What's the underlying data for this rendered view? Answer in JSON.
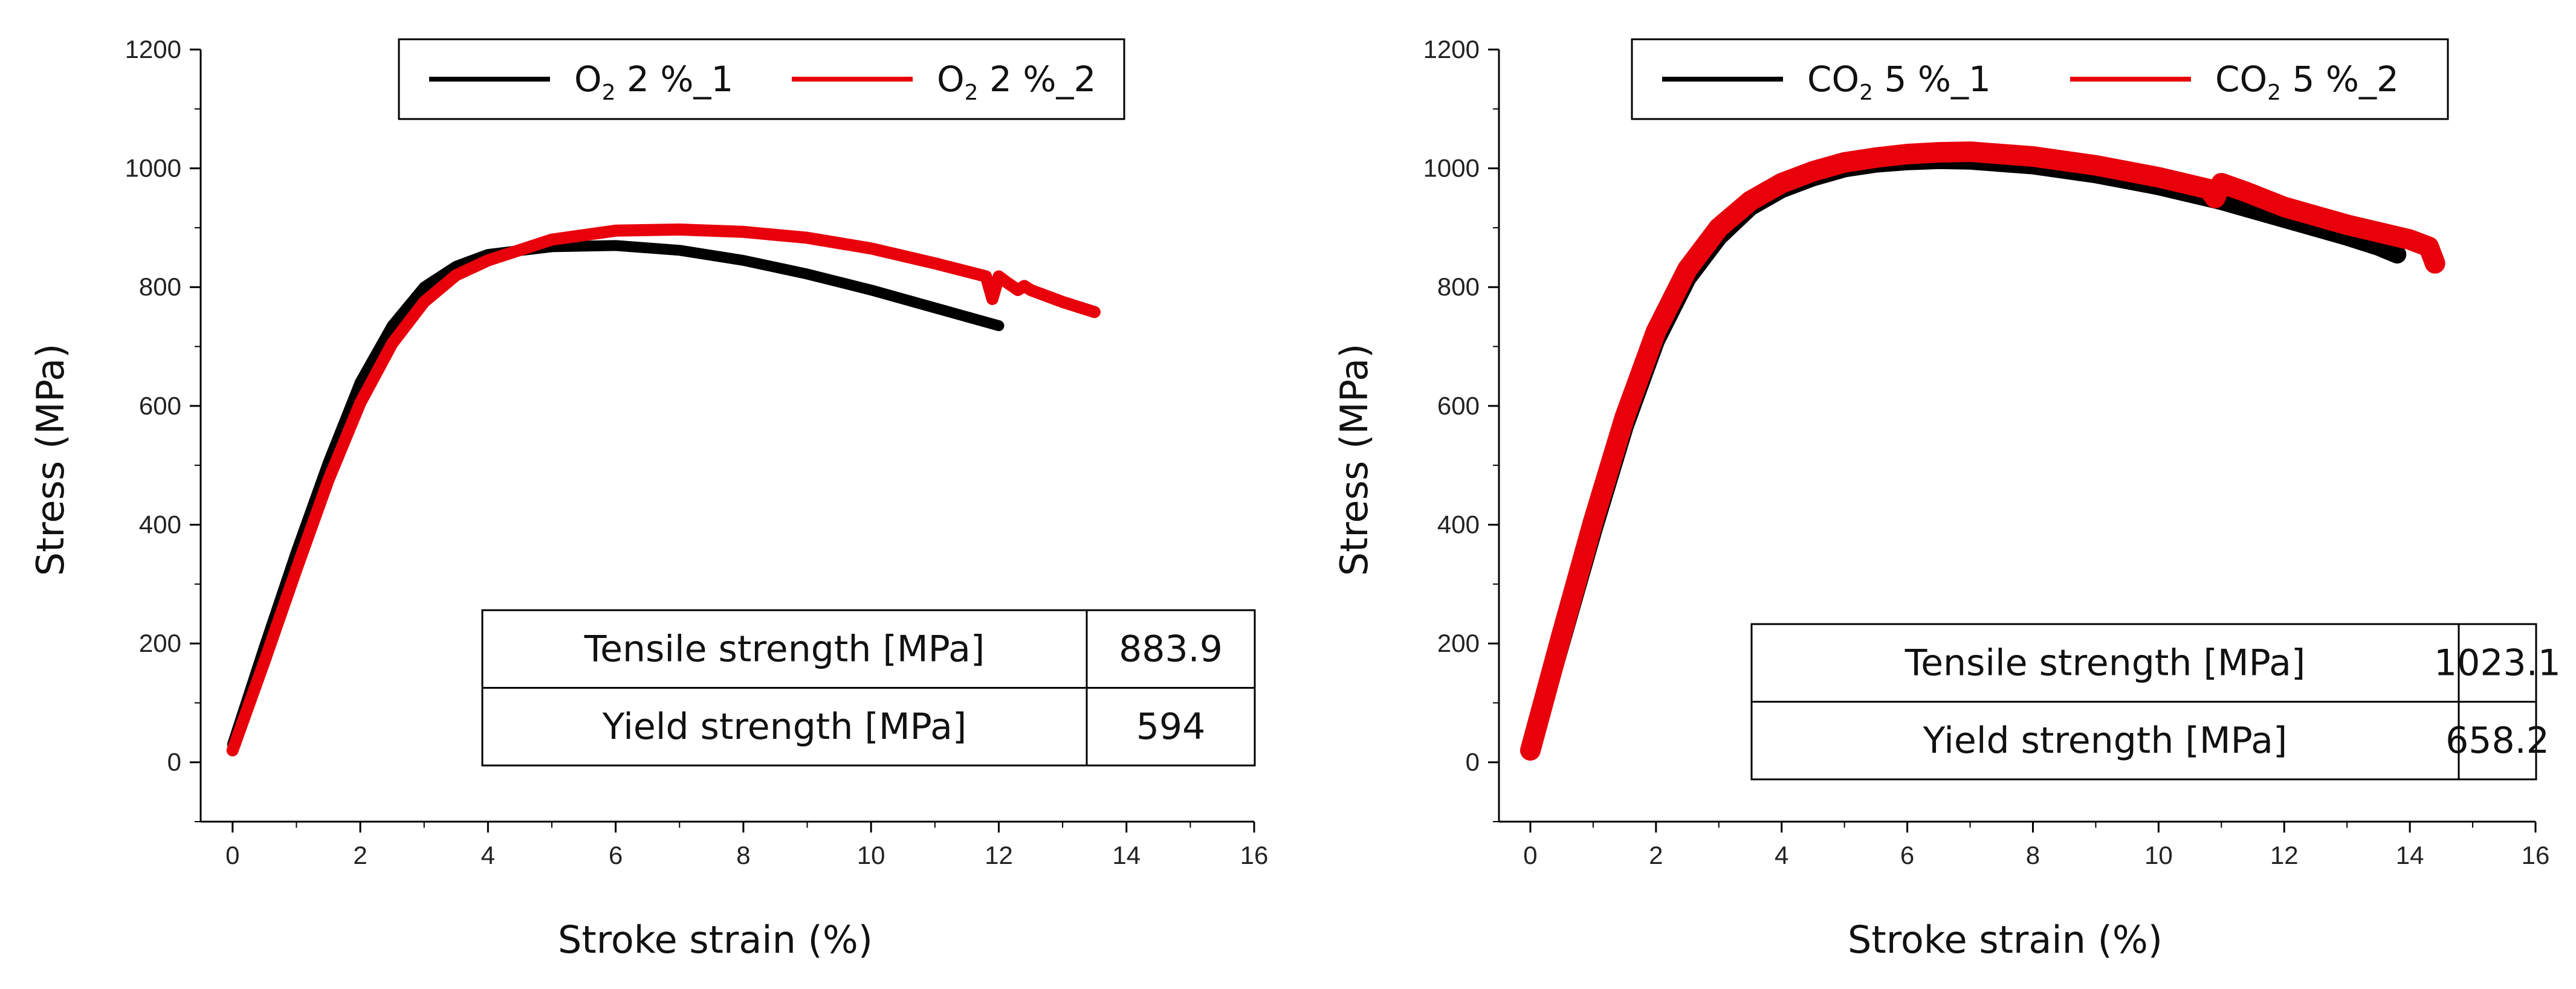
{
  "colors": {
    "series1": "#000000",
    "series2": "#e8000b"
  },
  "chart_data": [
    {
      "type": "line",
      "xlabel": "Stroke strain (%)",
      "ylabel": "Stress (MPa)",
      "xlim": [
        -0.5,
        16
      ],
      "ylim": [
        -100,
        1200
      ],
      "xticks": [
        0,
        2,
        4,
        6,
        8,
        10,
        12,
        14,
        16
      ],
      "yticks": [
        0,
        200,
        400,
        600,
        800,
        1000,
        1200
      ],
      "legend": {
        "position": "top",
        "entries": [
          {
            "main": "O",
            "sub": "2",
            "rest": " 2 %_1"
          },
          {
            "main": "O",
            "sub": "2",
            "rest": " 2 %_2"
          }
        ]
      },
      "series": [
        {
          "name": "O2 2 %_1",
          "color": "#000000",
          "x": [
            0,
            0.5,
            1,
            1.5,
            2,
            2.5,
            3,
            3.5,
            4,
            5,
            6,
            7,
            8,
            9,
            10,
            11,
            12
          ],
          "y": [
            30,
            195,
            355,
            505,
            640,
            735,
            800,
            835,
            855,
            868,
            870,
            862,
            845,
            822,
            795,
            765,
            735
          ]
        },
        {
          "name": "O2 2 %_2",
          "color": "#e8000b",
          "x": [
            0,
            0.5,
            1,
            1.5,
            2,
            2.5,
            3,
            3.5,
            4,
            5,
            6,
            7,
            8,
            9,
            10,
            11,
            11.8,
            11.9,
            12.0,
            12.1,
            12.3,
            12.4,
            12.5,
            13,
            13.5
          ],
          "y": [
            20,
            170,
            325,
            475,
            605,
            705,
            775,
            820,
            845,
            880,
            895,
            897,
            893,
            883,
            865,
            840,
            818,
            780,
            818,
            810,
            795,
            802,
            795,
            775,
            758
          ]
        }
      ],
      "table": {
        "rows": [
          {
            "label": "Tensile strength [MPa]",
            "value": "883.9"
          },
          {
            "label": "Yield strength [MPa]",
            "value": "594"
          }
        ]
      }
    },
    {
      "type": "line",
      "xlabel": "Stroke strain (%)",
      "ylabel": "Stress (MPa)",
      "xlim": [
        -0.5,
        16
      ],
      "ylim": [
        -100,
        1200
      ],
      "xticks": [
        0,
        2,
        4,
        6,
        8,
        10,
        12,
        14,
        16
      ],
      "yticks": [
        0,
        200,
        400,
        600,
        800,
        1000,
        1200
      ],
      "legend": {
        "position": "top",
        "entries": [
          {
            "main": "CO",
            "sub": "2",
            "rest": " 5 %_1"
          },
          {
            "main": "CO",
            "sub": "2",
            "rest": " 5 %_2"
          }
        ]
      },
      "series": [
        {
          "name": "CO2 5 %_1",
          "color": "#000000",
          "x": [
            0,
            0.5,
            1,
            1.5,
            2,
            2.5,
            3,
            3.5,
            4,
            4.5,
            5,
            5.5,
            6,
            6.5,
            7,
            8,
            9,
            10,
            11,
            12,
            13,
            13.5,
            13.8
          ],
          "y": [
            20,
            205,
            390,
            565,
            710,
            815,
            885,
            935,
            965,
            985,
            1000,
            1008,
            1012,
            1014,
            1013,
            1005,
            990,
            970,
            945,
            915,
            885,
            868,
            855
          ]
        },
        {
          "name": "CO2 5 %_2",
          "color": "#e8000b",
          "x": [
            0,
            0.5,
            1,
            1.5,
            2,
            2.5,
            3,
            3.5,
            4,
            4.5,
            5,
            5.5,
            6,
            6.5,
            7,
            8,
            9,
            10,
            10.8,
            10.9,
            11,
            11.4,
            12,
            13,
            14,
            14.3,
            14.4
          ],
          "y": [
            20,
            215,
            405,
            580,
            725,
            830,
            900,
            945,
            975,
            995,
            1010,
            1018,
            1024,
            1027,
            1028,
            1020,
            1005,
            985,
            965,
            950,
            975,
            960,
            935,
            905,
            880,
            868,
            840
          ]
        }
      ],
      "table": {
        "rows": [
          {
            "label": "Tensile strength [MPa]",
            "value": "1023.1"
          },
          {
            "label": "Yield strength [MPa]",
            "value": "658.2"
          }
        ]
      }
    }
  ]
}
